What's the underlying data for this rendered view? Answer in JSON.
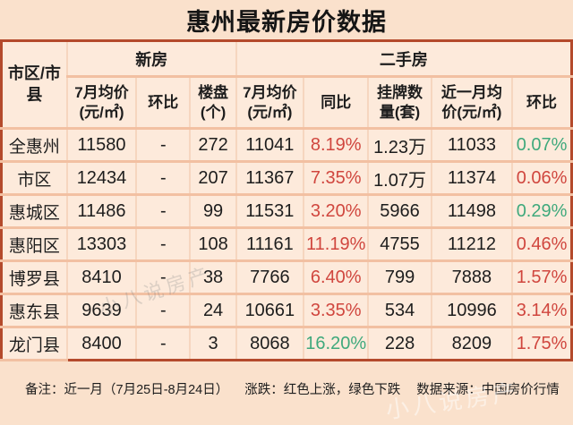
{
  "title": "惠州最新房价数据",
  "colors": {
    "up_red": "#d0463e",
    "down_green": "#3fa97c",
    "border_rust": "#b44a2c",
    "page_bg": "#fae1cc",
    "cell_bg": "#fdeadb"
  },
  "table": {
    "region_header": "市区/市\n县",
    "groups": [
      {
        "label": "新房",
        "span": 3
      },
      {
        "label": "二手房",
        "span": 5
      }
    ],
    "sub_headers": [
      "7月均价\n(元/㎡)",
      "环比",
      "楼盘\n(个)",
      "7月均价\n(元/㎡)",
      "同比",
      "挂牌数\n量(套)",
      "近一月均\n价(元/㎡)",
      "环比"
    ],
    "rows": [
      {
        "region": "全惠州",
        "cells": [
          {
            "v": "11580"
          },
          {
            "v": "-"
          },
          {
            "v": "272"
          },
          {
            "v": "11041"
          },
          {
            "v": "8.19%",
            "c": "up"
          },
          {
            "v": "1.23万"
          },
          {
            "v": "11033"
          },
          {
            "v": "0.07%",
            "c": "down"
          }
        ]
      },
      {
        "region": "市区",
        "cells": [
          {
            "v": "12434"
          },
          {
            "v": "-"
          },
          {
            "v": "207"
          },
          {
            "v": "11367"
          },
          {
            "v": "7.35%",
            "c": "up"
          },
          {
            "v": "1.07万"
          },
          {
            "v": "11374"
          },
          {
            "v": "0.06%",
            "c": "up"
          }
        ]
      },
      {
        "region": "惠城区",
        "cells": [
          {
            "v": "11486"
          },
          {
            "v": "-"
          },
          {
            "v": "99"
          },
          {
            "v": "11531"
          },
          {
            "v": "3.20%",
            "c": "up"
          },
          {
            "v": "5966"
          },
          {
            "v": "11498"
          },
          {
            "v": "0.29%",
            "c": "down"
          }
        ]
      },
      {
        "region": "惠阳区",
        "cells": [
          {
            "v": "13303"
          },
          {
            "v": "-"
          },
          {
            "v": "108"
          },
          {
            "v": "11161"
          },
          {
            "v": "11.19%",
            "c": "up"
          },
          {
            "v": "4755"
          },
          {
            "v": "11212"
          },
          {
            "v": "0.46%",
            "c": "up"
          }
        ]
      },
      {
        "region": "博罗县",
        "cells": [
          {
            "v": "8410"
          },
          {
            "v": "-"
          },
          {
            "v": "38"
          },
          {
            "v": "7766"
          },
          {
            "v": "6.40%",
            "c": "up"
          },
          {
            "v": "799"
          },
          {
            "v": "7888"
          },
          {
            "v": "1.57%",
            "c": "up"
          }
        ]
      },
      {
        "region": "惠东县",
        "cells": [
          {
            "v": "9639"
          },
          {
            "v": "-"
          },
          {
            "v": "24"
          },
          {
            "v": "10661"
          },
          {
            "v": "3.35%",
            "c": "up"
          },
          {
            "v": "534"
          },
          {
            "v": "10996"
          },
          {
            "v": "3.14%",
            "c": "up"
          }
        ]
      },
      {
        "region": "龙门县",
        "cells": [
          {
            "v": "8400"
          },
          {
            "v": "-"
          },
          {
            "v": "3"
          },
          {
            "v": "8068"
          },
          {
            "v": "16.20%",
            "c": "down"
          },
          {
            "v": "228"
          },
          {
            "v": "8209"
          },
          {
            "v": "1.75%",
            "c": "up"
          }
        ]
      }
    ]
  },
  "footer": {
    "note": "备注：近一月（7月25日-8月24日）",
    "legend": "涨跌：红色上涨，绿色下跌",
    "source": "数据来源：中国房价行情"
  },
  "watermark": {
    "text": "小八说房产"
  }
}
